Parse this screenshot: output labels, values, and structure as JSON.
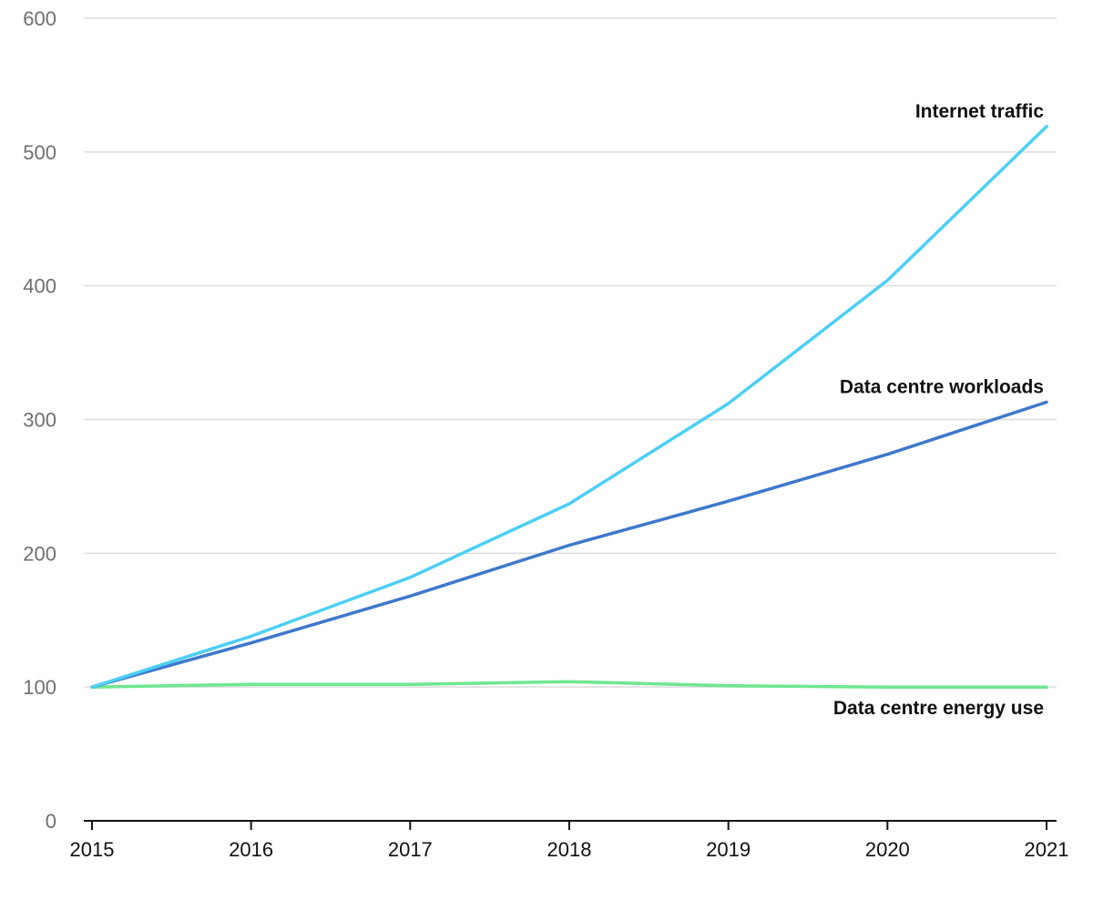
{
  "chart_data": {
    "type": "line",
    "title": "",
    "xlabel": "",
    "ylabel": "",
    "x": [
      "2015",
      "2016",
      "2017",
      "2018",
      "2019",
      "2020",
      "2021"
    ],
    "ylim": [
      0,
      600
    ],
    "yticks": [
      "0",
      "100",
      "200",
      "300",
      "400",
      "500",
      "600"
    ],
    "grid": true,
    "legend": "inline labels at line ends",
    "series": [
      {
        "name": "Internet traffic",
        "color": "#4ccff5",
        "values": [
          100,
          138,
          182,
          237,
          312,
          404,
          519
        ]
      },
      {
        "name": "Data centre workloads",
        "color": "#3e78cc",
        "values": [
          100,
          133,
          168,
          206,
          239,
          274,
          313
        ]
      },
      {
        "name": "Data centre energy use",
        "color": "#6ee78f",
        "values": [
          100,
          102,
          102,
          104,
          101,
          100,
          100
        ]
      }
    ]
  }
}
